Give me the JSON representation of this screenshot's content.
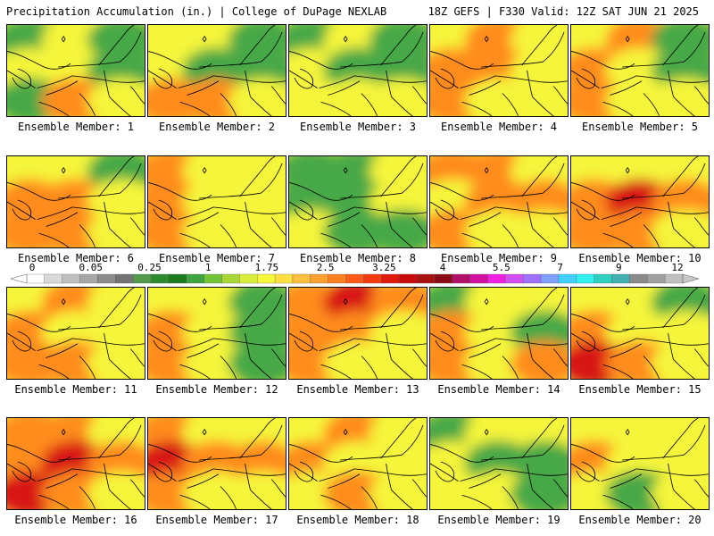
{
  "header": {
    "left": "Precipitation Accumulation (in.) | College of DuPage NEXLAB",
    "right": "18Z GEFS | F330 Valid: 12Z SAT JUN 21 2025"
  },
  "members": [
    {
      "label": "Ensemble Member: 1",
      "regime": [
        0,
        1,
        0,
        1,
        1,
        0,
        0,
        2,
        1
      ]
    },
    {
      "label": "Ensemble Member: 2",
      "regime": [
        1,
        1,
        0,
        1,
        0,
        0,
        2,
        2,
        1
      ]
    },
    {
      "label": "Ensemble Member: 3",
      "regime": [
        0,
        1,
        0,
        1,
        0,
        0,
        1,
        1,
        1
      ]
    },
    {
      "label": "Ensemble Member: 4",
      "regime": [
        1,
        2,
        1,
        2,
        2,
        1,
        2,
        1,
        1
      ]
    },
    {
      "label": "Ensemble Member: 5",
      "regime": [
        1,
        2,
        0,
        2,
        1,
        0,
        2,
        1,
        1
      ]
    },
    {
      "label": "Ensemble Member: 6",
      "regime": [
        1,
        1,
        0,
        2,
        2,
        1,
        2,
        2,
        1
      ]
    },
    {
      "label": "Ensemble Member: 7",
      "regime": [
        2,
        1,
        1,
        2,
        1,
        1,
        2,
        1,
        1
      ]
    },
    {
      "label": "Ensemble Member: 8",
      "regime": [
        0,
        0,
        1,
        0,
        0,
        1,
        1,
        0,
        0
      ]
    },
    {
      "label": "Ensemble Member: 9",
      "regime": [
        2,
        2,
        1,
        1,
        2,
        2,
        2,
        1,
        1
      ]
    },
    {
      "label": "Ensemble Member: 10",
      "regime": [
        1,
        1,
        1,
        2,
        3,
        2,
        2,
        2,
        1
      ]
    },
    {
      "label": "Ensemble Member: 11",
      "regime": [
        1,
        2,
        1,
        2,
        1,
        1,
        2,
        2,
        1
      ]
    },
    {
      "label": "Ensemble Member: 12",
      "regime": [
        1,
        1,
        0,
        2,
        1,
        0,
        2,
        1,
        0
      ]
    },
    {
      "label": "Ensemble Member: 13",
      "regime": [
        2,
        3,
        2,
        2,
        2,
        1,
        2,
        1,
        1
      ]
    },
    {
      "label": "Ensemble Member: 14",
      "regime": [
        0,
        1,
        1,
        2,
        1,
        0,
        2,
        1,
        2
      ]
    },
    {
      "label": "Ensemble Member: 15",
      "regime": [
        1,
        1,
        0,
        2,
        1,
        1,
        3,
        2,
        1
      ]
    },
    {
      "label": "Ensemble Member: 16",
      "regime": [
        2,
        2,
        1,
        2,
        3,
        2,
        3,
        2,
        1
      ]
    },
    {
      "label": "Ensemble Member: 17",
      "regime": [
        2,
        1,
        1,
        3,
        2,
        2,
        2,
        1,
        1
      ]
    },
    {
      "label": "Ensemble Member: 18",
      "regime": [
        1,
        2,
        1,
        2,
        1,
        1,
        1,
        2,
        1
      ]
    },
    {
      "label": "Ensemble Member: 19",
      "regime": [
        0,
        1,
        1,
        1,
        0,
        0,
        1,
        1,
        0
      ]
    },
    {
      "label": "Ensemble Member: 20",
      "regime": [
        1,
        1,
        1,
        2,
        1,
        1,
        1,
        0,
        1
      ]
    }
  ],
  "legend": {
    "labels": [
      "0",
      "0.05",
      "0.25",
      "1",
      "1.75",
      "2.5",
      "3.25",
      "4",
      "5.5",
      "7",
      "9",
      "12"
    ],
    "colors": [
      "#ffffff",
      "#d9d9d9",
      "#bfbfbf",
      "#a6a6a6",
      "#8c8c8c",
      "#737373",
      "#4f9a4f",
      "#2f8a2f",
      "#1e7a1e",
      "#3fa43f",
      "#74c43a",
      "#a8d838",
      "#d8f03a",
      "#f7f73a",
      "#ffe040",
      "#ffc040",
      "#ffa030",
      "#ff8020",
      "#ff5a18",
      "#f03a10",
      "#e01a0a",
      "#c80a0a",
      "#a81010",
      "#8a0a18",
      "#b0106a",
      "#d010a0",
      "#f020e0",
      "#d050f0",
      "#a070ff",
      "#80a0ff",
      "#40d0ff",
      "#30f0f0",
      "#30d0c0",
      "#40b0b0",
      "#8a8a8a",
      "#a0a0a0",
      "#c0c0c0"
    ]
  }
}
